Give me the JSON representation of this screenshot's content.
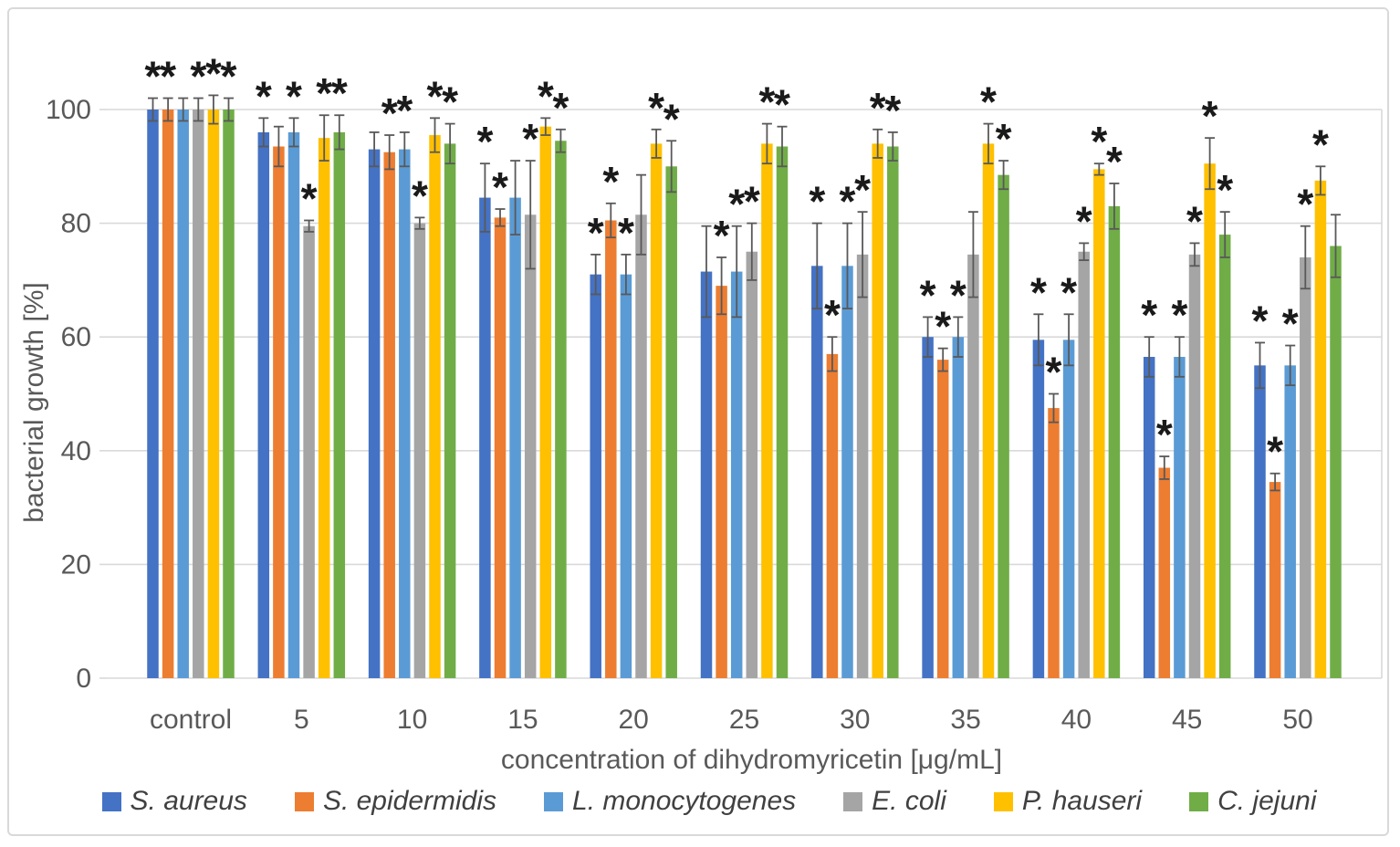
{
  "chart_data": {
    "type": "bar",
    "title": "",
    "xlabel": "concentration of dihydromyricetin [μg/mL]",
    "ylabel": "bacterial growth [%]",
    "ylim": [
      0,
      110
    ],
    "yticks": [
      0,
      20,
      40,
      60,
      80,
      100
    ],
    "ytick_labels": [
      "0",
      "20",
      "40",
      "60",
      "80",
      "100"
    ],
    "grid": "horizontal gridlines on",
    "legend_position": "bottom",
    "significance_marker": "*",
    "categories": [
      "control",
      "5",
      "10",
      "15",
      "20",
      "25",
      "30",
      "35",
      "40",
      "45",
      "50"
    ],
    "series": [
      {
        "name": "S. aureus",
        "color": "#4472C4",
        "values": [
          100,
          96,
          93,
          84.5,
          71,
          71.5,
          72.5,
          60,
          59.5,
          56.5,
          55
        ],
        "errors": [
          2,
          2.5,
          3,
          6,
          3.5,
          8,
          7.5,
          3.5,
          4.5,
          3.5,
          4
        ],
        "significant": [
          1,
          1,
          0,
          1,
          1,
          0,
          1,
          1,
          1,
          1,
          1
        ]
      },
      {
        "name": "S. epidermidis",
        "color": "#ED7D31",
        "values": [
          100,
          93.5,
          92.5,
          81,
          80.5,
          69,
          57,
          56,
          47.5,
          37,
          34.5
        ],
        "errors": [
          2,
          3.5,
          3,
          1.5,
          3,
          5,
          3,
          2,
          2.5,
          2,
          1.5
        ],
        "significant": [
          1,
          0,
          1,
          1,
          1,
          1,
          1,
          1,
          1,
          1,
          1
        ]
      },
      {
        "name": "L. monocytogenes",
        "color": "#5B9BD5",
        "values": [
          100,
          96,
          93,
          84.5,
          71,
          71.5,
          72.5,
          60,
          59.5,
          56.5,
          55
        ],
        "errors": [
          2,
          2.5,
          3,
          6.5,
          3.5,
          8,
          7.5,
          3.5,
          4.5,
          3.5,
          3.5
        ],
        "significant": [
          0,
          1,
          1,
          0,
          1,
          1,
          1,
          1,
          1,
          1,
          1
        ]
      },
      {
        "name": "E. coli",
        "color": "#A5A5A5",
        "values": [
          100,
          79.5,
          80,
          81.5,
          81.5,
          75,
          74.5,
          74.5,
          75,
          74.5,
          74
        ],
        "errors": [
          2,
          1,
          1,
          9.5,
          7,
          5,
          7.5,
          7.5,
          1.5,
          2,
          5.5
        ],
        "significant": [
          1,
          1,
          1,
          1,
          0,
          1,
          1,
          0,
          1,
          1,
          1
        ]
      },
      {
        "name": "P. hauseri",
        "color": "#FFC000",
        "values": [
          100,
          95,
          95.5,
          97,
          94,
          94,
          94,
          94,
          89.5,
          90.5,
          87.5
        ],
        "errors": [
          2.5,
          4,
          3,
          1.5,
          2.5,
          3.5,
          2.5,
          3.5,
          1,
          4.5,
          2.5
        ],
        "significant": [
          1,
          1,
          1,
          1,
          1,
          1,
          1,
          1,
          1,
          1,
          1
        ]
      },
      {
        "name": "C. jejuni",
        "color": "#70AD47",
        "values": [
          100,
          96,
          94,
          94.5,
          90,
          93.5,
          93.5,
          88.5,
          83,
          78,
          76
        ],
        "errors": [
          2,
          3,
          3.5,
          2,
          4.5,
          3.5,
          2.5,
          2.5,
          4,
          4,
          5.5
        ],
        "significant": [
          1,
          1,
          1,
          1,
          1,
          1,
          1,
          1,
          1,
          1,
          0
        ]
      }
    ],
    "colors": {
      "gridline": "#d9d9d9",
      "axis_text": "#595959",
      "error_bar": "#595959",
      "asterisk": "#1a1a1a",
      "figure_border": "#d9d9d9",
      "background": "#ffffff"
    }
  }
}
